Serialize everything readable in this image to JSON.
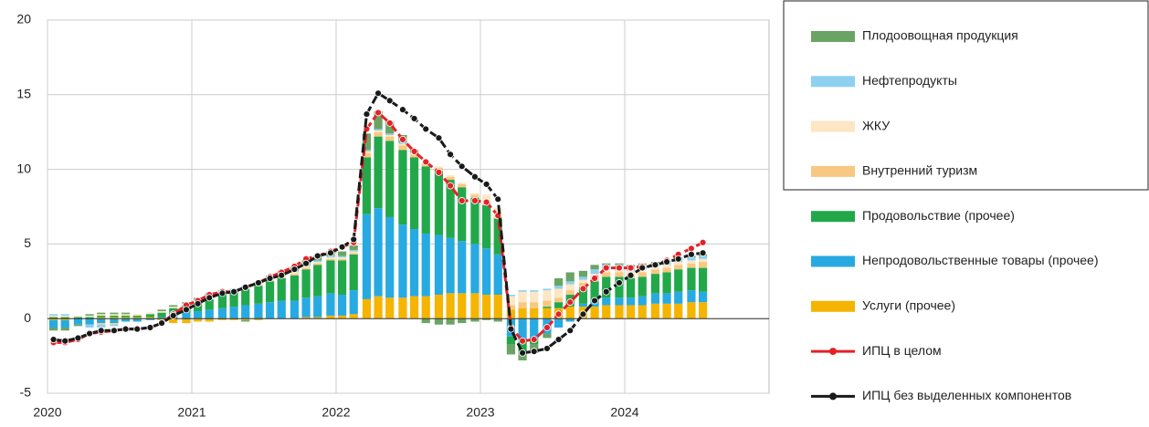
{
  "chart_data": {
    "type": "bar",
    "stacked": true,
    "x": [
      2020,
      2020.08,
      2020.17,
      2020.25,
      2020.33,
      2020.42,
      2020.5,
      2020.58,
      2020.67,
      2020.75,
      2020.83,
      2020.92,
      2021,
      2021.08,
      2021.17,
      2021.25,
      2021.33,
      2021.42,
      2021.5,
      2021.58,
      2021.67,
      2021.75,
      2021.83,
      2021.92,
      2022,
      2022.08,
      2022.17,
      2022.25,
      2022.33,
      2022.42,
      2022.5,
      2022.58,
      2022.67,
      2022.75,
      2022.83,
      2022.92,
      2023,
      2023.08,
      2023.17,
      2023.25,
      2023.33,
      2023.42,
      2023.5,
      2023.58,
      2023.67,
      2023.75,
      2023.83,
      2023.92,
      2024,
      2024.08,
      2024.17,
      2024.25,
      2024.33,
      2024.42,
      2024.5
    ],
    "xlim": [
      2020,
      2025
    ],
    "xticks": [
      2020,
      2021,
      2022,
      2023,
      2024
    ],
    "ylim": [
      -5,
      20
    ],
    "yticks": [
      -5,
      0,
      5,
      10,
      15,
      20
    ],
    "grid": true,
    "series": [
      {
        "name": "Плодоовощная продукция",
        "kind": "bar",
        "color": "#6aa465",
        "values": [
          -0.2,
          -0.2,
          -0.1,
          0.1,
          0.1,
          0.1,
          0.1,
          0,
          0,
          0.1,
          0.1,
          0.1,
          0.1,
          0.2,
          0.1,
          0,
          -0.1,
          0,
          0.1,
          0.2,
          0.3,
          0.3,
          0.3,
          0.3,
          0.3,
          0.3,
          1.1,
          1.2,
          0.8,
          0.5,
          0.2,
          -0.3,
          -0.4,
          -0.4,
          -0.3,
          -0.2,
          -0.1,
          -0.2,
          -0.7,
          -0.6,
          -0.6,
          -0.3,
          0.5,
          0.6,
          0.4,
          0.3,
          0.1,
          0.1,
          0.1,
          0.1,
          0.1,
          0.1,
          0.1,
          0.1,
          0.1
        ]
      },
      {
        "name": "Нефтепродукты",
        "kind": "bar",
        "color": "#8dd0f0",
        "values": [
          0.1,
          0.1,
          0,
          -0.2,
          -0.2,
          -0.1,
          0,
          0,
          0,
          0,
          0,
          0,
          0.1,
          0.1,
          0.1,
          0.1,
          0.1,
          0.1,
          0.1,
          0.1,
          0.1,
          0.1,
          0.1,
          0.1,
          0.1,
          0.1,
          0.1,
          0.1,
          0.1,
          0.1,
          0,
          0,
          0,
          0,
          0,
          0,
          0,
          0,
          0.1,
          0.1,
          0.1,
          0.1,
          0.2,
          0.2,
          0.2,
          0.3,
          0.3,
          0.3,
          0.3,
          0.3,
          0.2,
          0.2,
          0.2,
          0.2,
          0.2
        ]
      },
      {
        "name": "ЖКУ",
        "kind": "bar",
        "color": "#fde6c4",
        "values": [
          0.1,
          0.1,
          0.1,
          0.1,
          0.1,
          0.1,
          0.1,
          0.1,
          0.1,
          0.1,
          0.1,
          0.1,
          0.1,
          0.1,
          0.1,
          0.1,
          0.1,
          0.1,
          0.1,
          0.1,
          0.1,
          0.1,
          0.1,
          0.1,
          0.1,
          0.1,
          0.1,
          0.1,
          0.1,
          0.1,
          0.1,
          0.1,
          0.1,
          0.1,
          0.1,
          0.1,
          0.5,
          0.5,
          0.6,
          0.7,
          0.7,
          0.7,
          0.6,
          0.4,
          0.2,
          0.2,
          0.2,
          0.2,
          0.2,
          0.2,
          0.2,
          0.2,
          0.2,
          0.2,
          0.2
        ]
      },
      {
        "name": "Внутренний туризм",
        "kind": "bar",
        "color": "#f8c882",
        "values": [
          0,
          0,
          0,
          0,
          -0.1,
          -0.1,
          0,
          0,
          0,
          0,
          0,
          0,
          0,
          0,
          0,
          0,
          0,
          0.1,
          0.1,
          0.1,
          0.1,
          0.1,
          0.1,
          0.1,
          0.1,
          0.1,
          0.3,
          0.3,
          0.3,
          0.3,
          0.2,
          0.2,
          0.2,
          0.2,
          0.2,
          0.2,
          0.2,
          0.2,
          0.3,
          0.4,
          0.4,
          0.4,
          0.3,
          0.3,
          0.3,
          0.3,
          0.3,
          0.3,
          0.3,
          0.3,
          0.3,
          0.3,
          0.3,
          0.3,
          0.4
        ]
      },
      {
        "name": "Продовольствие (прочее)",
        "kind": "bar",
        "color": "#22a84a",
        "values": [
          0.1,
          0.1,
          0.1,
          0.1,
          0.1,
          0.1,
          0.1,
          0.1,
          0.2,
          0.3,
          0.4,
          0.5,
          0.6,
          0.7,
          0.9,
          1.0,
          1.1,
          1.2,
          1.4,
          1.5,
          1.7,
          1.9,
          2.1,
          2.2,
          2.3,
          2.4,
          3.8,
          4.8,
          5.1,
          5.0,
          4.8,
          4.5,
          4.3,
          3.9,
          3.6,
          3.1,
          2.9,
          2.4,
          -0.5,
          -0.7,
          -0.4,
          0.1,
          0.4,
          0.8,
          1.1,
          1.3,
          1.4,
          1.4,
          1.3,
          1.3,
          1.3,
          1.4,
          1.5,
          1.5,
          1.6
        ]
      },
      {
        "name": "Непродовольственные товары (прочее)",
        "kind": "bar",
        "color": "#27aae1",
        "values": [
          -0.5,
          -0.5,
          -0.4,
          -0.4,
          -0.3,
          -0.3,
          -0.2,
          -0.2,
          -0.1,
          0.1,
          0.3,
          0.4,
          0.5,
          0.6,
          0.7,
          0.8,
          0.9,
          1.0,
          1.1,
          1.2,
          1.2,
          1.3,
          1.4,
          1.5,
          1.4,
          1.6,
          5.7,
          5.9,
          5.4,
          4.9,
          4.5,
          4.2,
          4.0,
          3.7,
          3.5,
          3.3,
          3.1,
          2.7,
          -1.2,
          -1.5,
          -1.3,
          -1.0,
          -0.6,
          -0.2,
          0.2,
          0.4,
          0.5,
          0.5,
          0.5,
          0.6,
          0.7,
          0.7,
          0.8,
          0.8,
          0.7
        ]
      },
      {
        "name": "Услуги (прочее)",
        "kind": "bar",
        "color": "#f5b400",
        "values": [
          -0.1,
          -0.1,
          0,
          0,
          0.1,
          0.1,
          0.1,
          0.1,
          0.1,
          -0.1,
          -0.3,
          -0.3,
          -0.2,
          -0.2,
          -0.1,
          -0.1,
          -0.1,
          -0.1,
          0,
          0,
          0,
          0.1,
          0.1,
          0.2,
          0.2,
          0.3,
          1.3,
          1.5,
          1.4,
          1.4,
          1.5,
          1.5,
          1.6,
          1.7,
          1.7,
          1.7,
          1.6,
          1.6,
          0.6,
          0.7,
          0.7,
          0.7,
          0.7,
          0.8,
          0.8,
          0.8,
          0.9,
          0.9,
          0.9,
          0.9,
          1.0,
          1.0,
          1.0,
          1.1,
          1.1
        ]
      },
      {
        "name": "ИПЦ в целом",
        "kind": "line",
        "color": "#e32228",
        "values": [
          -1.6,
          -1.6,
          -1.4,
          -1.0,
          -0.9,
          -0.8,
          -0.7,
          -0.7,
          -0.6,
          -0.3,
          0.3,
          0.9,
          1.2,
          1.6,
          1.8,
          1.8,
          2.1,
          2.4,
          2.8,
          3.1,
          3.5,
          4.0,
          4.2,
          4.5,
          4.8,
          5.1,
          12.7,
          13.8,
          13.1,
          12.0,
          11.2,
          10.5,
          9.8,
          8.9,
          7.9,
          7.9,
          7.8,
          6.9,
          -0.6,
          -1.5,
          -1.4,
          -0.6,
          0.3,
          1.1,
          2.0,
          2.7,
          3.4,
          3.4,
          3.4,
          3.5,
          3.6,
          3.9,
          4.3,
          4.7,
          5.1
        ]
      },
      {
        "name": "ИПЦ без выделенных компонентов",
        "kind": "line",
        "color": "#1a1a1a",
        "values": [
          -1.4,
          -1.5,
          -1.3,
          -1.0,
          -0.8,
          -0.8,
          -0.7,
          -0.7,
          -0.6,
          -0.3,
          0.2,
          0.6,
          1.0,
          1.4,
          1.7,
          1.8,
          2.1,
          2.4,
          2.7,
          2.9,
          3.3,
          3.7,
          4.2,
          4.4,
          4.8,
          5.3,
          13.7,
          15.1,
          14.6,
          14.0,
          13.4,
          12.7,
          12.1,
          11.0,
          10.2,
          9.5,
          9.0,
          8.0,
          -0.7,
          -2.3,
          -2.2,
          -2.0,
          -1.4,
          -0.8,
          0.3,
          1.2,
          1.8,
          2.4,
          2.9,
          3.4,
          3.6,
          3.8,
          4.0,
          4.3,
          4.4
        ]
      }
    ]
  }
}
